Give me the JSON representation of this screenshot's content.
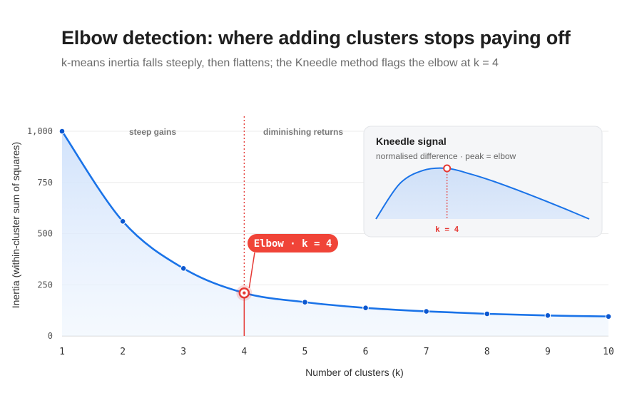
{
  "chart_data": {
    "type": "line",
    "title": "Elbow detection: where adding clusters stops paying off",
    "subtitle": "k-means inertia falls steeply, then flattens; the Kneedle method flags the elbow at k = 4",
    "xlabel": "Number of clusters (k)",
    "ylabel": "Inertia (within-cluster sum of squares)",
    "x": [
      1,
      2,
      3,
      4,
      5,
      6,
      7,
      8,
      9,
      10
    ],
    "y": [
      1000,
      560,
      330,
      210,
      165,
      137,
      120,
      108,
      100,
      95
    ],
    "xlim": [
      1,
      10
    ],
    "ylim": [
      0,
      1000
    ],
    "yticks": [
      0,
      250,
      500,
      750,
      1000
    ],
    "ytick_labels": [
      "0",
      "250",
      "500",
      "750",
      "1,000"
    ],
    "xtick_labels": [
      "1",
      "2",
      "3",
      "4",
      "5",
      "6",
      "7",
      "8",
      "9",
      "10"
    ],
    "grid": true,
    "elbow_k": 4,
    "annotations": {
      "region_left": "steep gains",
      "region_right": "diminishing returns",
      "elbow_label": "Elbow · k = 4"
    },
    "colors": {
      "line": "#1a73e8",
      "point": "#0b57d0",
      "elbow": "#e53935",
      "fill": "#dbe8fb"
    },
    "inset": {
      "title": "Kneedle signal",
      "subtitle": "normalised difference · peak = elbow",
      "peak_label": "k = 4",
      "peak_k": 4
    }
  }
}
